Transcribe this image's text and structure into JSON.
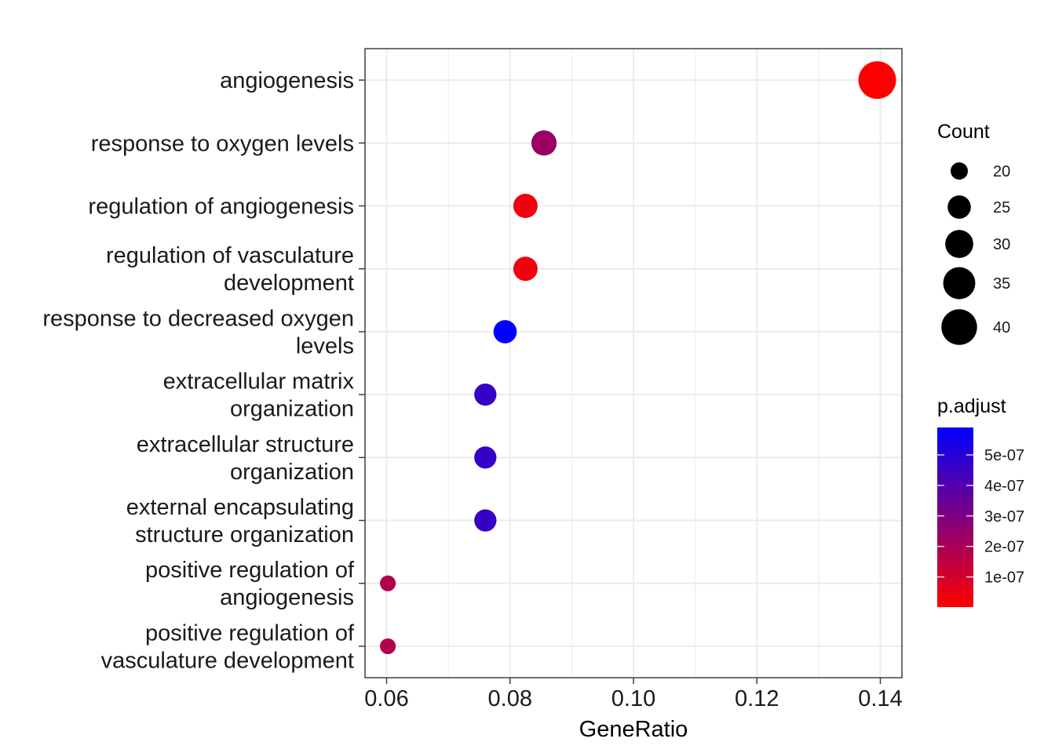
{
  "chart_data": {
    "type": "scatter",
    "title": "",
    "xlabel": "GeneRatio",
    "ylabel": "",
    "xlim": [
      0.0565,
      0.1435
    ],
    "x_ticks": [
      0.06,
      0.08,
      0.1,
      0.12,
      0.14
    ],
    "x_tick_labels": [
      "0.06",
      "0.08",
      "0.10",
      "0.12",
      "0.14"
    ],
    "grid": true,
    "categories": [
      [
        "angiogenesis"
      ],
      [
        "response to oxygen levels"
      ],
      [
        "regulation of angiogenesis"
      ],
      [
        "regulation of vasculature",
        "development"
      ],
      [
        "response to decreased oxygen",
        "levels"
      ],
      [
        "extracellular matrix",
        "organization"
      ],
      [
        "extracellular structure",
        "organization"
      ],
      [
        "external encapsulating",
        "structure organization"
      ],
      [
        "positive regulation of",
        "angiogenesis"
      ],
      [
        "positive regulation of",
        "vasculature development"
      ]
    ],
    "points": [
      {
        "x": 0.1395,
        "count": 43,
        "p_adjust": 1e-09
      },
      {
        "x": 0.0855,
        "count": 27,
        "p_adjust": 2.3e-07
      },
      {
        "x": 0.0825,
        "count": 26,
        "p_adjust": 3e-08
      },
      {
        "x": 0.0825,
        "count": 26,
        "p_adjust": 3e-08
      },
      {
        "x": 0.0792,
        "count": 25,
        "p_adjust": 5.9e-07
      },
      {
        "x": 0.076,
        "count": 24,
        "p_adjust": 4.6e-07
      },
      {
        "x": 0.076,
        "count": 24,
        "p_adjust": 4.6e-07
      },
      {
        "x": 0.076,
        "count": 24,
        "p_adjust": 4.6e-07
      },
      {
        "x": 0.0602,
        "count": 19,
        "p_adjust": 1.8e-07
      },
      {
        "x": 0.0602,
        "count": 19,
        "p_adjust": 1.8e-07
      }
    ],
    "size_legend": {
      "title": "Count",
      "values": [
        20,
        25,
        30,
        35,
        40
      ],
      "labels": [
        "20",
        "25",
        "30",
        "35",
        "40"
      ]
    },
    "color_legend": {
      "title": "p.adjust",
      "low_color": "#ff0000",
      "high_color": "#0000ff",
      "range": [
        1e-09,
        5.9e-07
      ],
      "ticks": [
        1e-07,
        2e-07,
        3e-07,
        4e-07,
        5e-07
      ],
      "labels": [
        "1e-07",
        "2e-07",
        "3e-07",
        "4e-07",
        "5e-07"
      ]
    },
    "legend_position": "right"
  }
}
